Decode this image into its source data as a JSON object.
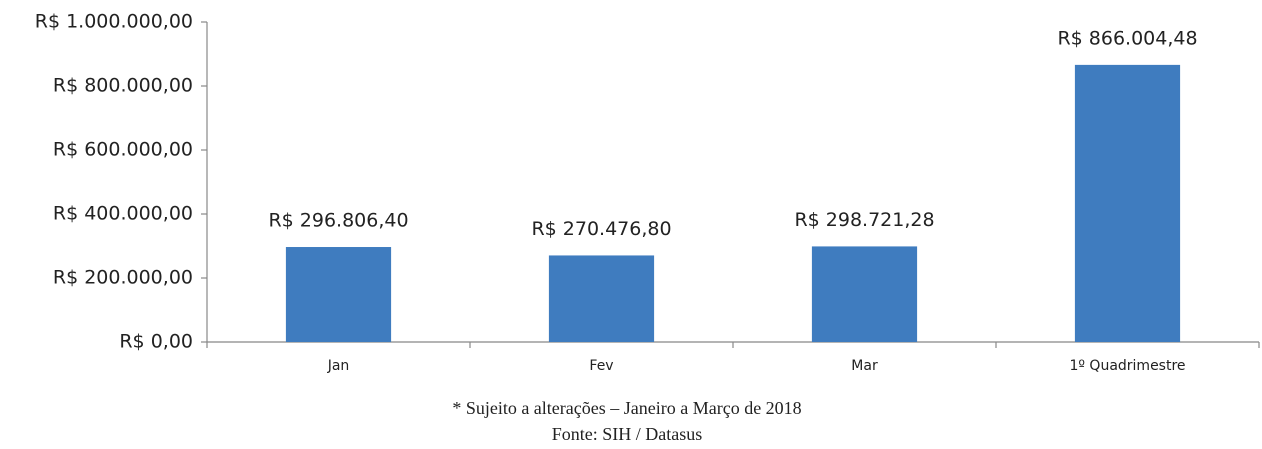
{
  "chart_data": {
    "type": "bar",
    "categories": [
      "Jan",
      "Fev",
      "Mar",
      "1º Quadrimestre"
    ],
    "values": [
      296806.4,
      270476.8,
      298721.28,
      866004.48
    ],
    "value_labels": [
      "R$ 296.806,40",
      "R$ 270.476,80",
      "R$ 298.721,28",
      "R$ 866.004,48"
    ],
    "color": "#3f7cbf",
    "ylim": [
      0,
      1000000
    ],
    "yticks": [
      {
        "value": 0,
        "label": "R$ 0,00"
      },
      {
        "value": 200000,
        "label": "R$ 200.000,00"
      },
      {
        "value": 400000,
        "label": "R$ 400.000,00"
      },
      {
        "value": 600000,
        "label": "R$ 600.000,00"
      },
      {
        "value": 800000,
        "label": "R$ 800.000,00"
      },
      {
        "value": 1000000,
        "label": "R$ 1.000.000,00"
      }
    ],
    "annotations": [
      "* Sujeito a alterações – Janeiro a Março de 2018",
      "Fonte: SIH / Datasus"
    ]
  }
}
